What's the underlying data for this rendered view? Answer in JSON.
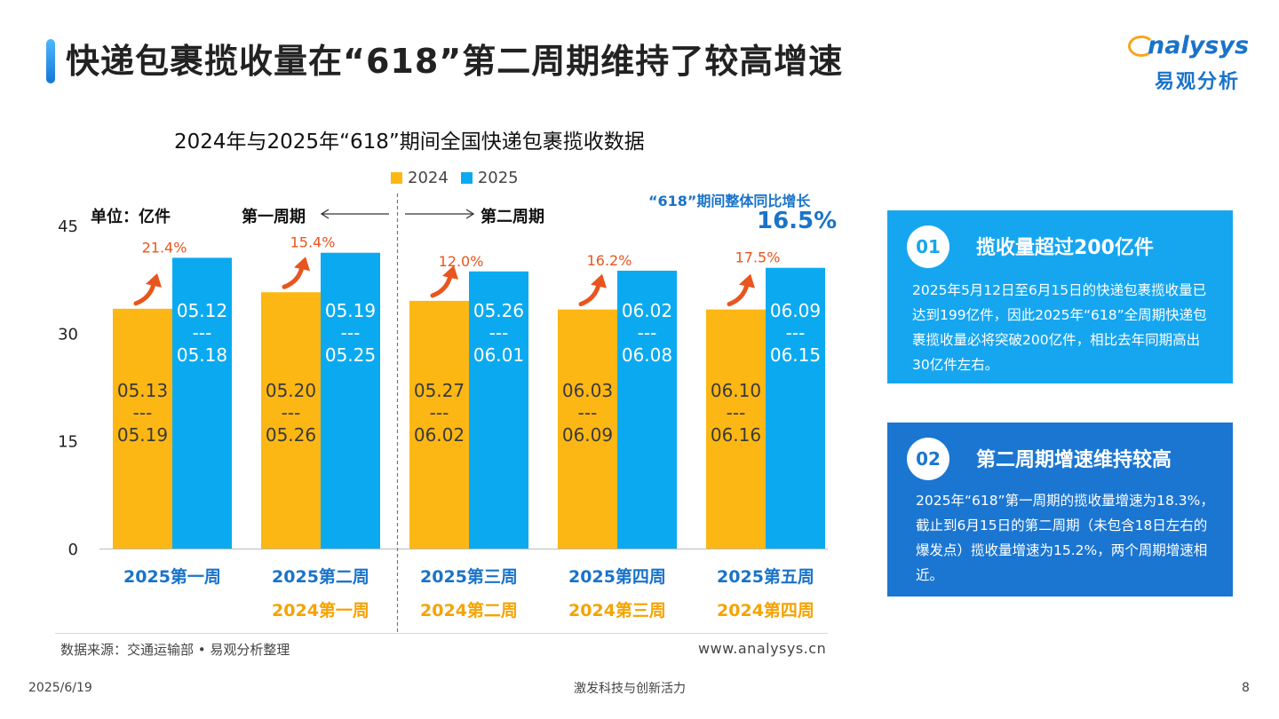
{
  "header": {
    "title": "快递包裹揽收量在“618”第二周期维持了较高增速",
    "logo_top": "nalysys",
    "logo_bottom": "易观分析"
  },
  "chart_labels": {
    "unit": "单位：亿件",
    "period_first": "第一周期",
    "period_second": "第二周期",
    "overall_label": "“618”期间整体同比增长",
    "overall_value": "16.5%"
  },
  "chart_data": {
    "type": "bar",
    "title": "2024年与2025年“618”期间全国快递包裹揽收数据",
    "ylim": [
      0,
      45
    ],
    "yticks": [
      "0",
      "15",
      "30",
      "45"
    ],
    "grid": false,
    "legend_position": "top-center",
    "categories": [
      "2025第一周",
      "2025第二周",
      "2025第三周",
      "2025第四周",
      "2025第五周"
    ],
    "categories_2024": [
      "",
      "2024第一周",
      "2024第二周",
      "2024第三周",
      "2024第四周"
    ],
    "series": [
      {
        "name": "2024",
        "color": "#FDB714",
        "values": [
          33.4,
          35.7,
          34.5,
          33.3,
          33.3
        ],
        "bar_labels": [
          [
            "05.13",
            "---",
            "05.19"
          ],
          [
            "05.20",
            "---",
            "05.26"
          ],
          [
            "05.27",
            "---",
            "06.02"
          ],
          [
            "06.03",
            "---",
            "06.09"
          ],
          [
            "06.10",
            "---",
            "06.16"
          ]
        ]
      },
      {
        "name": "2025",
        "color": "#0BAAF0",
        "values": [
          40.5,
          41.2,
          38.6,
          38.7,
          39.1
        ],
        "bar_labels": [
          [
            "05.12",
            "---",
            "05.18"
          ],
          [
            "05.19",
            "---",
            "05.25"
          ],
          [
            "05.26",
            "---",
            "06.01"
          ],
          [
            "06.02",
            "---",
            "06.08"
          ],
          [
            "06.09",
            "---",
            "06.15"
          ]
        ]
      }
    ],
    "growth_labels": [
      "21.4%",
      "15.4%",
      "12.0%",
      "16.2%",
      "17.5%"
    ],
    "colors": {
      "category_2025": "#1a73c9",
      "category_2024": "#F5A300",
      "growth": "#E8551E",
      "axis": "#bbbbbb"
    }
  },
  "panels": [
    {
      "num": "01",
      "title": "揽收量超过200亿件",
      "body": "2025年5月12日至6月15日的快递包裹揽收量已达到199亿件，因此2025年“618”全周期快递包裹揽收量必将突破200亿件，相比去年同期高出30亿件左右。"
    },
    {
      "num": "02",
      "title": "第二周期增速维持较高",
      "body": "2025年“618”第一周期的揽收量增速为18.3%，截止到6月15日的第二周期（未包含18日左右的爆发点）揽收量增速为15.2%，两个周期增速相近。"
    }
  ],
  "footer": {
    "source": "数据来源：交通运输部 • 易观分析整理",
    "website": "www.analysys.cn",
    "date": "2025/6/19",
    "slogan": "激发科技与创新活力",
    "page": "8"
  }
}
